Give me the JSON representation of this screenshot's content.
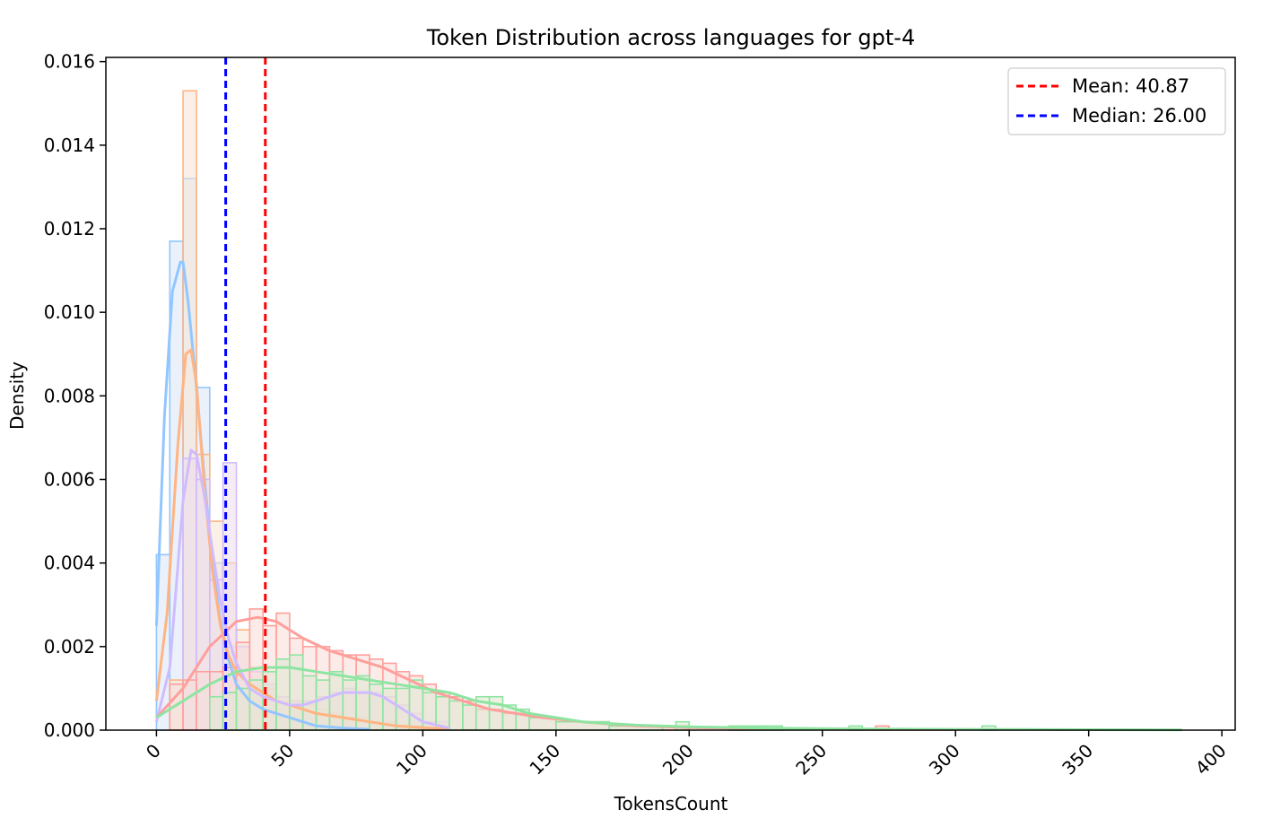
{
  "chart_data": {
    "type": "histogram",
    "title": "Token Distribution across languages for gpt-4",
    "xlabel": "TokensCount",
    "ylabel": "Density",
    "xlim": [
      -19,
      405
    ],
    "ylim": [
      0,
      0.0161
    ],
    "x_ticks": [
      0,
      50,
      100,
      150,
      200,
      250,
      300,
      350,
      400
    ],
    "x_tick_labels": [
      "0",
      "50",
      "100",
      "150",
      "200",
      "250",
      "300",
      "350",
      "400"
    ],
    "y_ticks": [
      0,
      0.002,
      0.004,
      0.006,
      0.008,
      0.01,
      0.012,
      0.014,
      0.016
    ],
    "y_tick_labels": [
      "0.000",
      "0.002",
      "0.004",
      "0.006",
      "0.008",
      "0.010",
      "0.012",
      "0.014",
      "0.016"
    ],
    "grid": false,
    "legend_position": "top-right",
    "reference_lines": [
      {
        "label": "Mean: 40.87",
        "x": 40.87,
        "color": "#ff0000",
        "style": "dashed"
      },
      {
        "label": "Median: 26.00",
        "x": 26.0,
        "color": "#0000ff",
        "style": "dashed"
      }
    ],
    "series": [
      {
        "color": "#92c6ff",
        "fill": "#d8e6f8",
        "bins": [
          [
            0,
            5,
            0.0042
          ],
          [
            5,
            10,
            0.0117
          ],
          [
            10,
            15,
            0.0132
          ],
          [
            15,
            20,
            0.0082
          ],
          [
            20,
            25,
            0.004
          ],
          [
            25,
            30,
            0.002
          ],
          [
            30,
            35,
            0.0012
          ],
          [
            35,
            40,
            0.0007
          ],
          [
            40,
            45,
            0.0004
          ],
          [
            45,
            50,
            0.0003
          ],
          [
            50,
            55,
            0.0002
          ],
          [
            55,
            60,
            0.0001
          ],
          [
            60,
            65,
            0.0001
          ]
        ],
        "kde_x": [
          0,
          3,
          6,
          9,
          10,
          12,
          15,
          18,
          21,
          24,
          27,
          30,
          35,
          40,
          45,
          50,
          55,
          60,
          70,
          80
        ],
        "kde_y": [
          0.0025,
          0.0075,
          0.0105,
          0.0112,
          0.0112,
          0.0102,
          0.0082,
          0.006,
          0.004,
          0.0026,
          0.0017,
          0.0011,
          0.0007,
          0.0005,
          0.0004,
          0.0003,
          0.0002,
          0.0001,
          5e-05,
          2e-05
        ]
      },
      {
        "color": "#ffb482",
        "fill": "#f6e3d3",
        "bins": [
          [
            5,
            10,
            0.0012
          ],
          [
            10,
            15,
            0.0153
          ],
          [
            15,
            20,
            0.0066
          ],
          [
            20,
            25,
            0.005
          ],
          [
            25,
            30,
            0.004
          ],
          [
            30,
            35,
            0.0024
          ],
          [
            35,
            40,
            0.0015
          ],
          [
            40,
            45,
            0.001
          ],
          [
            45,
            50,
            0.0008
          ],
          [
            50,
            55,
            0.0007
          ],
          [
            55,
            60,
            0.0006
          ],
          [
            60,
            65,
            0.0005
          ],
          [
            65,
            70,
            0.0004
          ],
          [
            70,
            75,
            0.0003
          ],
          [
            75,
            80,
            0.0003
          ],
          [
            80,
            90,
            0.0002
          ],
          [
            90,
            100,
            0.0001
          ]
        ],
        "kde_x": [
          0,
          4,
          8,
          11,
          13,
          15,
          18,
          21,
          24,
          27,
          30,
          35,
          40,
          45,
          50,
          55,
          60,
          70,
          80,
          90,
          100,
          110
        ],
        "kde_y": [
          0.0007,
          0.0028,
          0.0068,
          0.009,
          0.0091,
          0.0083,
          0.0058,
          0.0038,
          0.0025,
          0.0018,
          0.0014,
          0.0011,
          0.0009,
          0.0007,
          0.0006,
          0.0005,
          0.0004,
          0.0003,
          0.0002,
          0.0001,
          6e-05,
          3e-05
        ]
      },
      {
        "color": "#d0bbff",
        "fill": "#ecdcec",
        "bins": [
          [
            10,
            15,
            0.0065
          ],
          [
            15,
            20,
            0.006
          ],
          [
            20,
            25,
            0.0036
          ],
          [
            25,
            30,
            0.0064
          ],
          [
            30,
            35,
            0.002
          ],
          [
            35,
            40,
            0.0014
          ],
          [
            40,
            45,
            0.0011
          ],
          [
            45,
            50,
            0.0008
          ],
          [
            50,
            55,
            0.0007
          ],
          [
            55,
            60,
            0.0007
          ],
          [
            60,
            65,
            0.0008
          ],
          [
            65,
            70,
            0.0009
          ],
          [
            70,
            75,
            0.001
          ],
          [
            75,
            80,
            0.0009
          ],
          [
            80,
            85,
            0.0009
          ],
          [
            85,
            90,
            0.0008
          ],
          [
            90,
            95,
            0.0006
          ],
          [
            95,
            100,
            0.0004
          ],
          [
            100,
            110,
            0.0002
          ]
        ],
        "kde_x": [
          0,
          5,
          10,
          13,
          15,
          18,
          21,
          24,
          27,
          30,
          35,
          40,
          45,
          50,
          55,
          60,
          65,
          70,
          75,
          80,
          85,
          90,
          95,
          100,
          110
        ],
        "kde_y": [
          0.0002,
          0.0015,
          0.0055,
          0.0067,
          0.0066,
          0.0056,
          0.0043,
          0.0031,
          0.0022,
          0.0016,
          0.001,
          0.0008,
          0.0007,
          0.0006,
          0.0006,
          0.0007,
          0.0008,
          0.0009,
          0.0009,
          0.0009,
          0.0008,
          0.0006,
          0.0004,
          0.0002,
          5e-05
        ]
      },
      {
        "color": "#ff9f9b",
        "fill": "#f8dcd8",
        "bins": [
          [
            5,
            10,
            0.0011
          ],
          [
            10,
            15,
            0.0012
          ],
          [
            15,
            20,
            0.0014
          ],
          [
            20,
            25,
            0.0014
          ],
          [
            25,
            30,
            0.0015
          ],
          [
            30,
            35,
            0.0021
          ],
          [
            35,
            40,
            0.0029
          ],
          [
            40,
            45,
            0.0025
          ],
          [
            45,
            50,
            0.0028
          ],
          [
            50,
            55,
            0.0022
          ],
          [
            55,
            60,
            0.002
          ],
          [
            60,
            65,
            0.002
          ],
          [
            65,
            70,
            0.0019
          ],
          [
            70,
            75,
            0.0018
          ],
          [
            75,
            80,
            0.0018
          ],
          [
            80,
            85,
            0.0017
          ],
          [
            85,
            90,
            0.0016
          ],
          [
            90,
            95,
            0.0014
          ],
          [
            95,
            100,
            0.0013
          ],
          [
            100,
            105,
            0.0011
          ],
          [
            105,
            110,
            0.0009
          ],
          [
            110,
            115,
            0.0008
          ],
          [
            115,
            120,
            0.0007
          ],
          [
            120,
            130,
            0.0005
          ],
          [
            130,
            140,
            0.0004
          ],
          [
            140,
            150,
            0.0003
          ],
          [
            150,
            170,
            0.0002
          ],
          [
            170,
            200,
            0.0001
          ],
          [
            215,
            220,
            0.0001
          ],
          [
            270,
            275,
            0.0001
          ]
        ],
        "kde_x": [
          0,
          10,
          20,
          30,
          38,
          45,
          55,
          65,
          75,
          85,
          95,
          105,
          115,
          125,
          135,
          145,
          160,
          180,
          200,
          250,
          300
        ],
        "kde_y": [
          0.0003,
          0.001,
          0.002,
          0.0026,
          0.0027,
          0.0026,
          0.0022,
          0.0019,
          0.0017,
          0.0015,
          0.0012,
          0.0009,
          0.0007,
          0.0005,
          0.0004,
          0.0003,
          0.0002,
          0.0001,
          6e-05,
          2e-05,
          1e-05
        ]
      },
      {
        "color": "#8de5a1",
        "fill": "#e1e6cf",
        "bins": [
          [
            20,
            25,
            0.0008
          ],
          [
            25,
            30,
            0.0009
          ],
          [
            30,
            35,
            0.001
          ],
          [
            35,
            40,
            0.0012
          ],
          [
            40,
            45,
            0.0014
          ],
          [
            45,
            50,
            0.0017
          ],
          [
            50,
            55,
            0.0018
          ],
          [
            55,
            60,
            0.0013
          ],
          [
            60,
            65,
            0.0012
          ],
          [
            65,
            70,
            0.0014
          ],
          [
            70,
            75,
            0.0012
          ],
          [
            75,
            80,
            0.0013
          ],
          [
            80,
            85,
            0.0011
          ],
          [
            85,
            90,
            0.001
          ],
          [
            90,
            95,
            0.001
          ],
          [
            95,
            100,
            0.0012
          ],
          [
            100,
            105,
            0.0009
          ],
          [
            105,
            110,
            0.0008
          ],
          [
            110,
            115,
            0.0007
          ],
          [
            115,
            120,
            0.0006
          ],
          [
            120,
            125,
            0.0008
          ],
          [
            125,
            130,
            0.0008
          ],
          [
            130,
            135,
            0.0006
          ],
          [
            135,
            140,
            0.0005
          ],
          [
            140,
            150,
            0.0003
          ],
          [
            150,
            170,
            0.0002
          ],
          [
            170,
            190,
            0.0001
          ],
          [
            195,
            200,
            0.0002
          ],
          [
            215,
            235,
            0.0001
          ],
          [
            260,
            265,
            0.0001
          ],
          [
            310,
            315,
            0.0001
          ]
        ],
        "kde_x": [
          0,
          10,
          20,
          30,
          40,
          50,
          60,
          70,
          80,
          90,
          100,
          110,
          120,
          130,
          140,
          150,
          160,
          180,
          200,
          230,
          260,
          300,
          350,
          385
        ],
        "kde_y": [
          0.0003,
          0.0007,
          0.0011,
          0.0014,
          0.0015,
          0.0015,
          0.0014,
          0.0013,
          0.0012,
          0.0011,
          0.001,
          0.0009,
          0.0007,
          0.0006,
          0.0004,
          0.0003,
          0.0002,
          0.00012,
          8e-05,
          5e-05,
          3e-05,
          2e-05,
          1e-05,
          5e-06
        ]
      }
    ]
  }
}
